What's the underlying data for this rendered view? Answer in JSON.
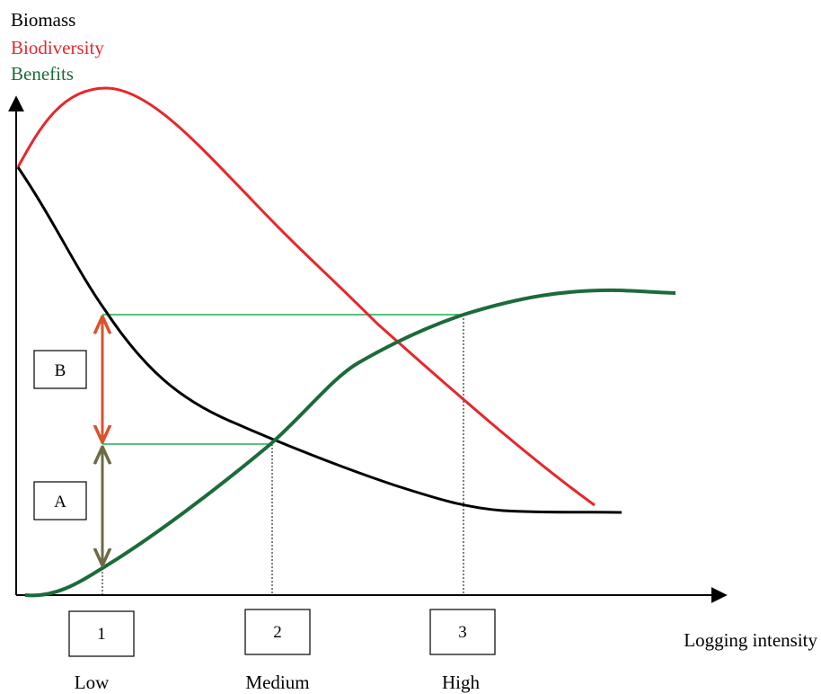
{
  "legend": {
    "biomass": "Biomass",
    "biodiversity": "Biodiversity",
    "benefits": "Benefits"
  },
  "x_axis": {
    "label": "Logging intensity"
  },
  "markers": [
    {
      "number": "1",
      "label": "Low"
    },
    {
      "number": "2",
      "label": "Medium"
    },
    {
      "number": "3",
      "label": "High"
    }
  ],
  "brackets": {
    "a": "A",
    "b": "B"
  },
  "colors": {
    "biomass": "#000000",
    "biodiversity": "#e8262a",
    "benefits": "#1c6b3a",
    "guide_lines": "#1fae4e",
    "arrow_b": "#d9532b",
    "arrow_a": "#6e6a45"
  }
}
